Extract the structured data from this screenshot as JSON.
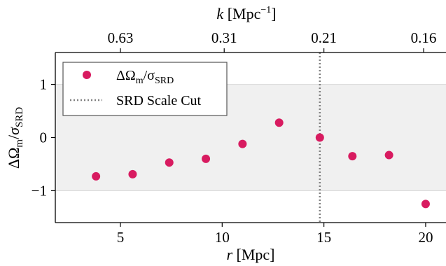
{
  "chart_data": {
    "type": "scatter",
    "x": [
      3.8,
      5.6,
      7.4,
      9.2,
      11.0,
      12.8,
      14.8,
      16.4,
      18.2,
      20.0
    ],
    "y": [
      -0.73,
      -0.69,
      -0.47,
      -0.4,
      -0.12,
      0.28,
      0.0,
      -0.35,
      -0.33,
      -1.25
    ],
    "xlim": [
      1.8,
      21.0
    ],
    "ylim": [
      -1.6,
      1.6
    ],
    "x_ticks": [
      5,
      10,
      15,
      20
    ],
    "y_ticks": [
      -1,
      0,
      1
    ],
    "y_tick_labels": [
      "−1",
      "0",
      "1"
    ],
    "xlabel_italic": "r",
    "xlabel_rest": " [Mpc]",
    "ylabel": "ΔΩm/σSRD",
    "top_axis": {
      "label_italic": "k",
      "label_rest": " [Mpc",
      "label_sup": "−1",
      "label_close": "]",
      "ticks": [
        {
          "x": 5.0,
          "label": "0.63"
        },
        {
          "x": 10.1,
          "label": "0.31"
        },
        {
          "x": 15.0,
          "label": "0.21"
        },
        {
          "x": 19.9,
          "label": "0.16"
        }
      ]
    },
    "band": {
      "y_min": -1,
      "y_max": 1
    },
    "scale_cut_x": 14.8,
    "legend": {
      "placement": "upper-left",
      "entries": [
        {
          "kind": "marker",
          "label_main": "ΔΩ",
          "label_sub1": "m",
          "label_mid": "/σ",
          "label_sub2": "SRD"
        },
        {
          "kind": "line",
          "label": "SRD Scale Cut"
        }
      ]
    },
    "grid": false,
    "colors": {
      "points": "#d81b60",
      "band": "#f0f0f0",
      "band_line": "#d9d9d9",
      "scale_cut": "#808080"
    }
  }
}
